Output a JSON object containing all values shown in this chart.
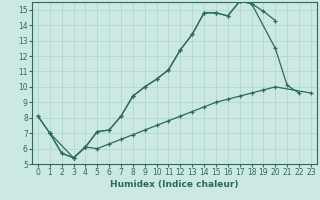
{
  "xlabel": "Humidex (Indice chaleur)",
  "bg_color": "#cce8e4",
  "line_color": "#2a6b5a",
  "grid_color": "#aad4d0",
  "xlim": [
    -0.5,
    23.5
  ],
  "ylim": [
    5,
    15.5
  ],
  "yticks": [
    5,
    6,
    7,
    8,
    9,
    10,
    11,
    12,
    13,
    14,
    15
  ],
  "xticks": [
    0,
    1,
    2,
    3,
    4,
    5,
    6,
    7,
    8,
    9,
    10,
    11,
    12,
    13,
    14,
    15,
    16,
    17,
    18,
    19,
    20,
    21,
    22,
    23
  ],
  "line1_x": [
    0,
    1,
    2,
    3,
    4,
    5,
    6,
    7,
    8,
    9,
    10,
    11,
    12,
    13,
    14,
    15,
    16,
    17,
    18,
    20,
    21,
    22
  ],
  "line1_y": [
    8.1,
    7.0,
    5.7,
    5.4,
    6.1,
    7.1,
    7.2,
    8.1,
    9.4,
    10.0,
    10.5,
    11.1,
    12.4,
    13.4,
    14.8,
    14.8,
    14.6,
    15.55,
    15.4,
    12.5,
    10.1,
    9.6
  ],
  "line2_x": [
    0,
    1,
    3,
    4,
    5,
    6,
    7,
    8,
    9,
    10,
    11,
    12,
    13,
    14,
    15,
    16,
    17,
    18,
    19,
    20
  ],
  "line2_y": [
    8.1,
    7.0,
    5.4,
    6.1,
    7.1,
    7.2,
    8.1,
    9.4,
    10.0,
    10.5,
    11.1,
    12.4,
    13.4,
    14.8,
    14.8,
    14.6,
    15.55,
    15.4,
    14.9,
    14.3
  ],
  "line3_x": [
    1,
    2,
    3,
    4,
    5,
    6,
    7,
    8,
    9,
    10,
    11,
    12,
    13,
    14,
    15,
    16,
    17,
    18,
    19,
    20,
    23
  ],
  "line3_y": [
    7.0,
    5.7,
    5.4,
    6.1,
    6.0,
    6.3,
    6.6,
    6.9,
    7.2,
    7.5,
    7.8,
    8.1,
    8.4,
    8.7,
    9.0,
    9.2,
    9.4,
    9.6,
    9.8,
    10.0,
    9.6
  ]
}
